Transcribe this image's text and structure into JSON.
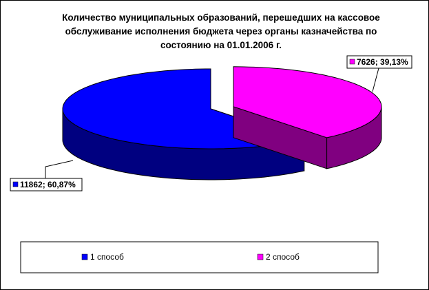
{
  "chart_data": {
    "type": "pie",
    "title": "Количество муниципальных образований, перешедших на кассовое обслуживание исполнения бюджета через органы казначейства по состоянию на 01.01.2006 г.",
    "categories": [
      "1 способ",
      "2 способ"
    ],
    "values": [
      11862,
      7626
    ],
    "value_labels": [
      "11862; 60,87%",
      "7626; 39,13%"
    ],
    "colors": [
      "#0000FF",
      "#FF00FF"
    ],
    "exploded": [
      false,
      true
    ],
    "legend": "bottom"
  }
}
